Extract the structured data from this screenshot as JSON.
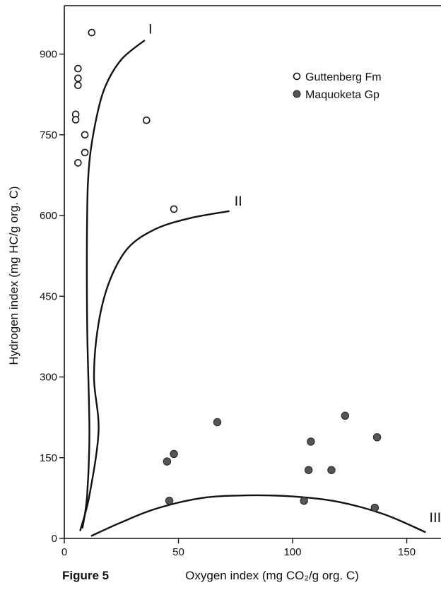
{
  "figure_label": "Figure 5",
  "chart_data": {
    "type": "scatter",
    "title": "",
    "xlabel": "Oxygen index (mg CO₂/g org. C)",
    "ylabel": "Hydrogen index (mg HC/g org. C)",
    "xlim": [
      0,
      165
    ],
    "ylim": [
      0,
      990
    ],
    "x_ticks": [
      {
        "value": 0,
        "label": "0"
      },
      {
        "value": 50,
        "label": "50"
      },
      {
        "value": 100,
        "label": "100"
      },
      {
        "value": 150,
        "label": "150"
      }
    ],
    "y_ticks": [
      {
        "value": 0,
        "label": "0"
      },
      {
        "value": 150,
        "label": "150"
      },
      {
        "value": 300,
        "label": "300"
      },
      {
        "value": 450,
        "label": "450"
      },
      {
        "value": 600,
        "label": "600"
      },
      {
        "value": 750,
        "label": "750"
      },
      {
        "value": 900,
        "label": "900"
      }
    ],
    "legend_position": "top-right",
    "grid": false,
    "series": [
      {
        "name": "Guttenberg Fm",
        "marker": "open-circle",
        "points": [
          {
            "x": 12,
            "y": 940
          },
          {
            "x": 6,
            "y": 873
          },
          {
            "x": 6,
            "y": 855
          },
          {
            "x": 6,
            "y": 842
          },
          {
            "x": 5,
            "y": 788
          },
          {
            "x": 5,
            "y": 778
          },
          {
            "x": 9,
            "y": 750
          },
          {
            "x": 9,
            "y": 717
          },
          {
            "x": 6,
            "y": 698
          },
          {
            "x": 36,
            "y": 777
          },
          {
            "x": 48,
            "y": 612
          }
        ]
      },
      {
        "name": "Maquoketa Gp",
        "marker": "filled-circle",
        "points": [
          {
            "x": 67,
            "y": 216
          },
          {
            "x": 123,
            "y": 228
          },
          {
            "x": 137,
            "y": 188
          },
          {
            "x": 108,
            "y": 180
          },
          {
            "x": 48,
            "y": 157
          },
          {
            "x": 45,
            "y": 143
          },
          {
            "x": 107,
            "y": 127
          },
          {
            "x": 117,
            "y": 127
          },
          {
            "x": 46,
            "y": 70
          },
          {
            "x": 105,
            "y": 70
          },
          {
            "x": 136,
            "y": 57
          }
        ]
      }
    ],
    "reference_curves": [
      {
        "label": "I",
        "points": [
          [
            8,
            20
          ],
          [
            10,
            80
          ],
          [
            11,
            200
          ],
          [
            10,
            400
          ],
          [
            10,
            600
          ],
          [
            11,
            700
          ],
          [
            14,
            780
          ],
          [
            18,
            840
          ],
          [
            25,
            890
          ],
          [
            35,
            925
          ]
        ]
      },
      {
        "label": "II",
        "points": [
          [
            7,
            15
          ],
          [
            11,
            80
          ],
          [
            15,
            200
          ],
          [
            13,
            300
          ],
          [
            15,
            400
          ],
          [
            20,
            480
          ],
          [
            28,
            540
          ],
          [
            40,
            575
          ],
          [
            55,
            595
          ],
          [
            72,
            608
          ]
        ]
      },
      {
        "label": "III",
        "points": [
          [
            12,
            5
          ],
          [
            25,
            30
          ],
          [
            40,
            55
          ],
          [
            60,
            75
          ],
          [
            80,
            80
          ],
          [
            100,
            78
          ],
          [
            120,
            68
          ],
          [
            140,
            45
          ],
          [
            158,
            12
          ]
        ]
      }
    ]
  }
}
